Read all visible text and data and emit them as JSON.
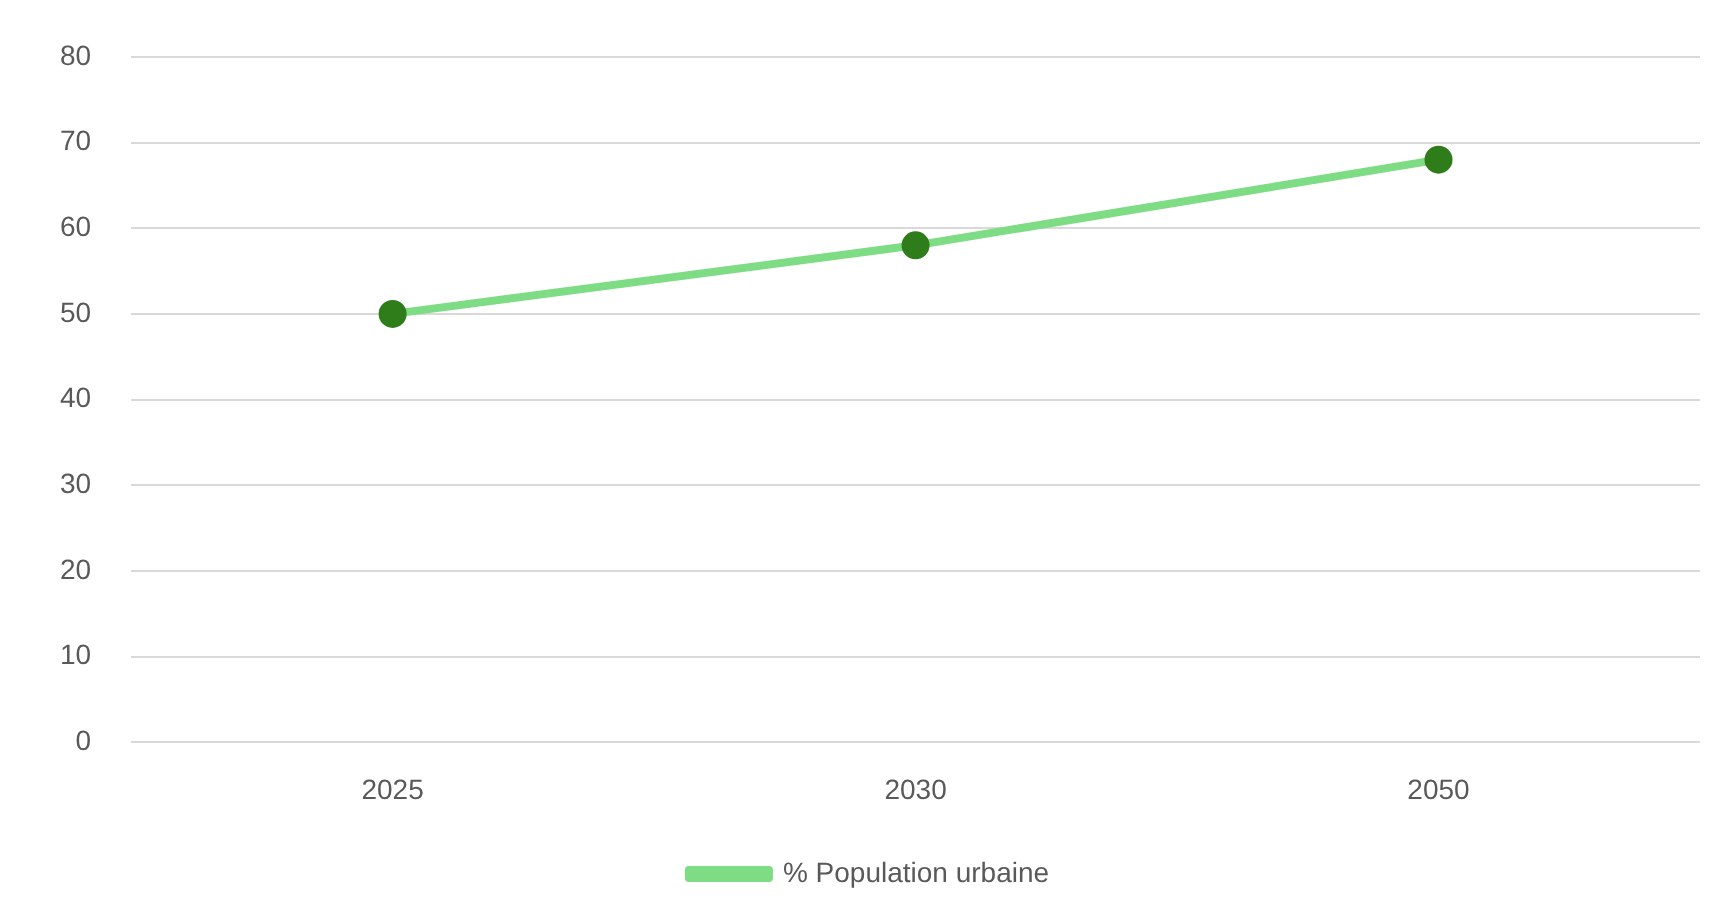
{
  "chart_data": {
    "type": "line",
    "categories": [
      "2025",
      "2030",
      "2050"
    ],
    "series": [
      {
        "name": "% Population urbaine",
        "color": "#7ddc84",
        "values": [
          50,
          58,
          68
        ]
      }
    ],
    "ylim": [
      0,
      80
    ],
    "yticks": [
      0,
      10,
      20,
      30,
      40,
      50,
      60,
      70,
      80
    ],
    "grid": "y",
    "legend": "bottom",
    "marker": "circle",
    "line_style": "solid"
  }
}
